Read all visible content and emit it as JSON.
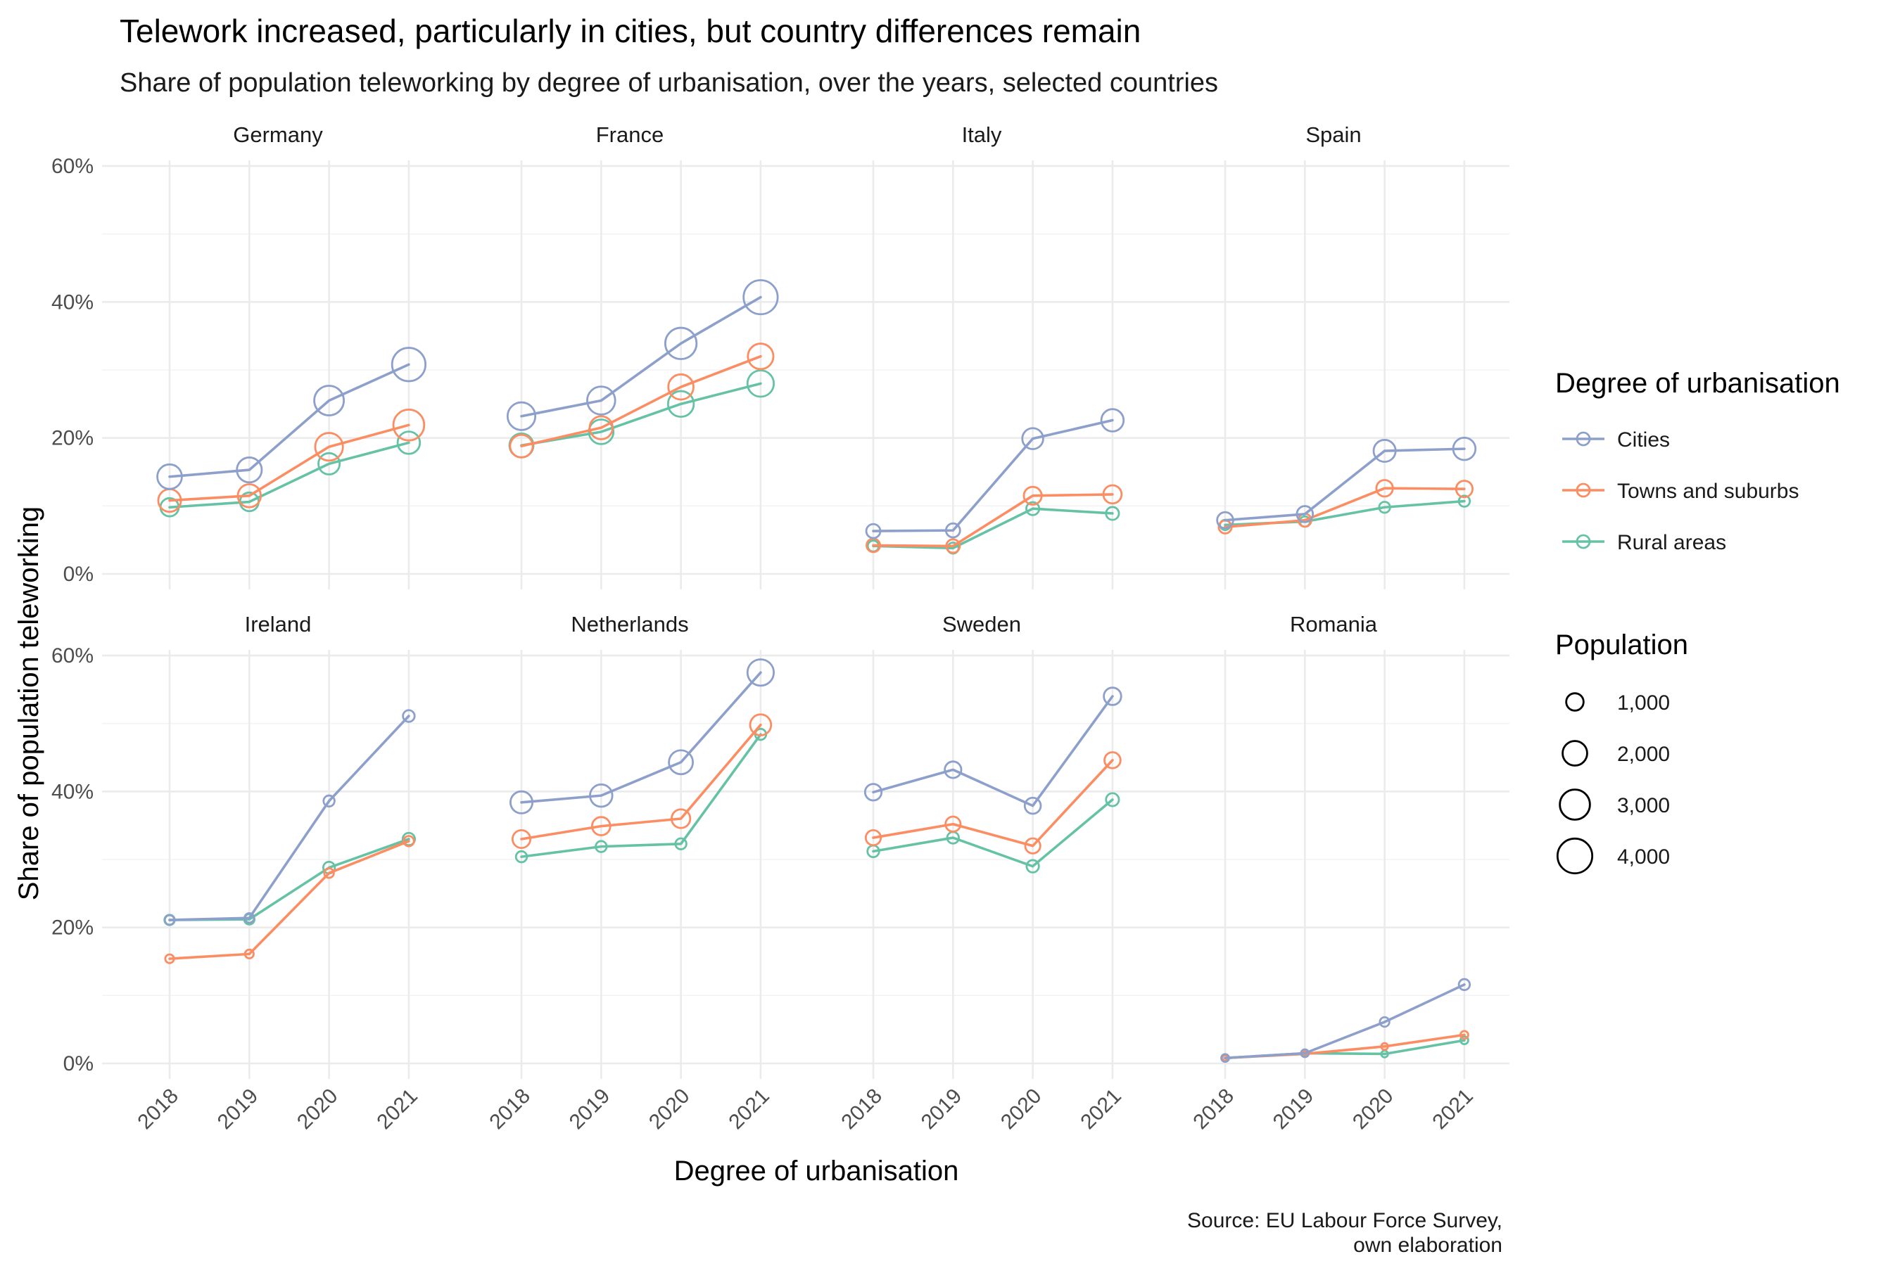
{
  "chart_data": {
    "type": "line",
    "title": "Telework increased, particularly in cities, but country differences remain",
    "subtitle": "Share of population teleworking by degree of urbanisation, over the years, selected countries",
    "xlabel": "Degree of urbanisation",
    "ylabel": "Share of population teleworking",
    "caption": [
      "Source: EU Labour Force Survey,",
      "own elaboration"
    ],
    "x": [
      "2018",
      "2019",
      "2020",
      "2021"
    ],
    "ylim": [
      0,
      0.6
    ],
    "yticks": [
      0,
      0.2,
      0.4,
      0.6
    ],
    "ytick_labels": [
      "0%",
      "20%",
      "40%",
      "60%"
    ],
    "grid": true,
    "legend_position": "right",
    "color_legend": {
      "title": "Degree of urbanisation",
      "entries": [
        {
          "key": "cities",
          "label": "Cities",
          "color": "#8da0cb"
        },
        {
          "key": "towns",
          "label": "Towns and suburbs",
          "color": "#fc8d62"
        },
        {
          "key": "rural",
          "label": "Rural areas",
          "color": "#66c2a5"
        }
      ]
    },
    "size_legend": {
      "title": "Population",
      "values": [
        1000,
        2000,
        3000,
        4000
      ],
      "labels": [
        "1,000",
        "2,000",
        "3,000",
        "4,000"
      ]
    },
    "panels": [
      {
        "name": "Germany",
        "cities": {
          "values": [
            0.143,
            0.153,
            0.255,
            0.308
          ],
          "population": [
            2000,
            2050,
            2900,
            3700
          ]
        },
        "towns": {
          "values": [
            0.108,
            0.115,
            0.187,
            0.219
          ],
          "population": [
            1700,
            1750,
            2550,
            3150
          ]
        },
        "rural": {
          "values": [
            0.098,
            0.106,
            0.162,
            0.193
          ],
          "population": [
            1100,
            1150,
            1500,
            1650
          ]
        }
      },
      {
        "name": "France",
        "cities": {
          "values": [
            0.232,
            0.255,
            0.339,
            0.407
          ],
          "population": [
            2550,
            2600,
            3250,
            3850
          ]
        },
        "towns": {
          "values": [
            0.188,
            0.215,
            0.275,
            0.32
          ],
          "population": [
            1700,
            1750,
            2100,
            2150
          ]
        },
        "rural": {
          "values": [
            0.189,
            0.209,
            0.25,
            0.28
          ],
          "population": [
            1900,
            2000,
            2200,
            2300
          ]
        }
      },
      {
        "name": "Italy",
        "cities": {
          "values": [
            0.063,
            0.064,
            0.199,
            0.226
          ],
          "population": [
            650,
            650,
            1450,
            1650
          ]
        },
        "towns": {
          "values": [
            0.042,
            0.041,
            0.115,
            0.117
          ],
          "population": [
            600,
            600,
            1050,
            1100
          ]
        },
        "rural": {
          "values": [
            0.041,
            0.038,
            0.096,
            0.089
          ],
          "population": [
            400,
            400,
            550,
            550
          ]
        }
      },
      {
        "name": "Spain",
        "cities": {
          "values": [
            0.079,
            0.088,
            0.181,
            0.184
          ],
          "population": [
            850,
            850,
            1600,
            1650
          ]
        },
        "towns": {
          "values": [
            0.069,
            0.079,
            0.126,
            0.125
          ],
          "population": [
            550,
            550,
            900,
            900
          ]
        },
        "rural": {
          "values": [
            0.072,
            0.077,
            0.098,
            0.107
          ],
          "population": [
            350,
            350,
            400,
            400
          ]
        }
      },
      {
        "name": "Ireland",
        "cities": {
          "values": [
            0.211,
            0.214,
            0.386,
            0.511
          ],
          "population": [
            300,
            300,
            400,
            450
          ]
        },
        "towns": {
          "values": [
            0.154,
            0.161,
            0.28,
            0.327
          ],
          "population": [
            250,
            250,
            300,
            350
          ]
        },
        "rural": {
          "values": [
            0.211,
            0.212,
            0.288,
            0.33
          ],
          "population": [
            350,
            350,
            450,
            500
          ]
        }
      },
      {
        "name": "Netherlands",
        "cities": {
          "values": [
            0.384,
            0.394,
            0.443,
            0.575
          ],
          "population": [
            1600,
            1650,
            1900,
            2300
          ]
        },
        "towns": {
          "values": [
            0.33,
            0.349,
            0.36,
            0.498
          ],
          "population": [
            1050,
            1100,
            1150,
            1450
          ]
        },
        "rural": {
          "values": [
            0.304,
            0.319,
            0.323,
            0.484
          ],
          "population": [
            400,
            400,
            400,
            400
          ]
        }
      },
      {
        "name": "Sweden",
        "cities": {
          "values": [
            0.399,
            0.432,
            0.379,
            0.54
          ],
          "population": [
            900,
            900,
            850,
            1000
          ]
        },
        "towns": {
          "values": [
            0.332,
            0.352,
            0.32,
            0.446
          ],
          "population": [
            750,
            750,
            750,
            850
          ]
        },
        "rural": {
          "values": [
            0.312,
            0.332,
            0.29,
            0.388
          ],
          "population": [
            450,
            450,
            500,
            550
          ]
        }
      },
      {
        "name": "Romania",
        "cities": {
          "values": [
            0.008,
            0.015,
            0.061,
            0.116
          ],
          "population": [
            200,
            200,
            300,
            400
          ]
        },
        "towns": {
          "values": [
            0.008,
            0.014,
            0.025,
            0.042
          ],
          "population": [
            100,
            100,
            150,
            200
          ]
        },
        "rural": {
          "values": [
            0.008,
            0.015,
            0.014,
            0.034
          ],
          "population": [
            100,
            100,
            150,
            200
          ]
        }
      }
    ]
  }
}
